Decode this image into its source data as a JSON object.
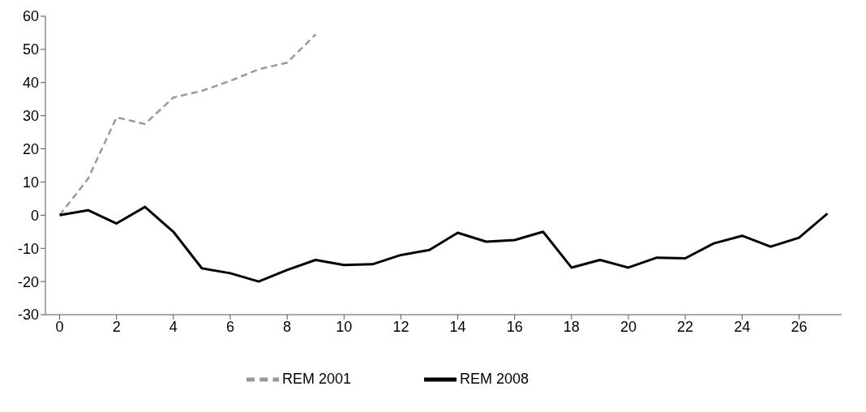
{
  "chart_data": {
    "type": "line",
    "x": [
      0,
      1,
      2,
      3,
      4,
      5,
      6,
      7,
      8,
      9,
      10,
      11,
      12,
      13,
      14,
      15,
      16,
      17,
      18,
      19,
      20,
      21,
      22,
      23,
      24,
      25,
      26,
      27
    ],
    "series": [
      {
        "name": "REM 2001",
        "color": "#999999",
        "line_style": "dashed",
        "values": [
          0,
          11,
          29.5,
          27.5,
          35.5,
          37.5,
          40.5,
          44,
          46,
          54.5,
          null,
          null,
          null,
          null,
          null,
          null,
          null,
          null,
          null,
          null,
          null,
          null,
          null,
          null,
          null,
          null,
          null,
          null
        ]
      },
      {
        "name": "REM 2008",
        "color": "#000000",
        "line_style": "solid",
        "values": [
          0,
          1.5,
          -2.5,
          2.5,
          -5,
          -16,
          -17.5,
          -20,
          -16.5,
          -13.5,
          -15,
          -14.8,
          -12,
          -10.5,
          -5.3,
          -8,
          -7.5,
          -5,
          -15.8,
          -13.5,
          -15.8,
          -12.8,
          -13,
          -8.5,
          -6.2,
          -9.5,
          -6.8,
          0.5
        ]
      }
    ],
    "xlim": [
      -0.5,
      27.5
    ],
    "xticks": [
      0,
      2,
      4,
      6,
      8,
      10,
      12,
      14,
      16,
      18,
      20,
      22,
      24,
      26
    ],
    "ylim": [
      -30,
      60
    ],
    "yticks": [
      -30,
      -20,
      -10,
      0,
      10,
      20,
      30,
      40,
      50,
      60
    ],
    "grid": false,
    "legend": "bottom",
    "marker": "none"
  }
}
